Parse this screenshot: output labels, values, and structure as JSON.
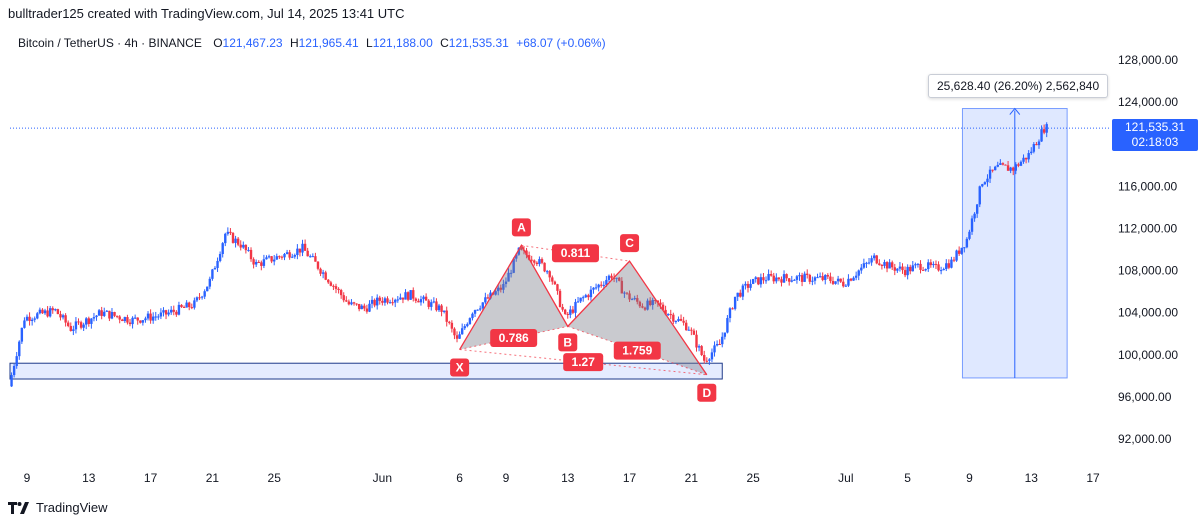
{
  "caption": "bulltrader125 created with TradingView.com, Jul 14, 2025 13:41 UTC",
  "legend": {
    "symbol": "Bitcoin / TetherUS · 4h · BINANCE",
    "o_label": "O",
    "o_value": "121,467.23",
    "h_label": "H",
    "h_value": "121,965.41",
    "l_label": "L",
    "l_value": "121,188.00",
    "c_label": "C",
    "c_value": "121,535.31",
    "change": "+68.07 (+0.06%)"
  },
  "price_tag": {
    "price": "121,535.31",
    "countdown": "02:18:03"
  },
  "measure_label": "25,628.40 (26.20%) 2,562,840",
  "brand": "TradingView",
  "colors": {
    "up": "#2962ff",
    "down": "#f23645",
    "pattern_fill": "#b2b5be",
    "pattern_line": "#f23645",
    "zone": "#2962ff"
  },
  "chart_data": {
    "type": "candlestick",
    "title": "Bitcoin / TetherUS · 4h · BINANCE",
    "ylim": [
      91000,
      130000
    ],
    "y_ticks": [
      "92,000.00",
      "96,000.00",
      "100,000.00",
      "104,000.00",
      "108,000.00",
      "112,000.00",
      "116,000.00",
      "120,000.00",
      "124,000.00",
      "128,000.00"
    ],
    "y_tick_values": [
      92000,
      96000,
      100000,
      104000,
      108000,
      112000,
      116000,
      120000,
      124000,
      128000
    ],
    "x_ticks": [
      "9",
      "13",
      "17",
      "21",
      "25",
      "Jun",
      "6",
      "9",
      "13",
      "17",
      "21",
      "25",
      "Jul",
      "5",
      "9",
      "13",
      "17"
    ],
    "x_tick_dates": [
      "2025-05-09",
      "2025-05-13",
      "2025-05-17",
      "2025-05-21",
      "2025-05-25",
      "2025-06-01",
      "2025-06-06",
      "2025-06-09",
      "2025-06-13",
      "2025-06-17",
      "2025-06-21",
      "2025-06-25",
      "2025-07-01",
      "2025-07-05",
      "2025-07-09",
      "2025-07-13",
      "2025-07-17"
    ],
    "price_path": [
      [
        "2025-05-08",
        97000
      ],
      [
        "2025-05-09",
        103500
      ],
      [
        "2025-05-11",
        104200
      ],
      [
        "2025-05-12",
        102500
      ],
      [
        "2025-05-14",
        104000
      ],
      [
        "2025-05-16",
        103300
      ],
      [
        "2025-05-18",
        103800
      ],
      [
        "2025-05-20",
        104800
      ],
      [
        "2025-05-21",
        107000
      ],
      [
        "2025-05-22",
        111500
      ],
      [
        "2025-05-23",
        110500
      ],
      [
        "2025-05-24",
        108600
      ],
      [
        "2025-05-26",
        109600
      ],
      [
        "2025-05-27",
        110100
      ],
      [
        "2025-05-28",
        108400
      ],
      [
        "2025-05-30",
        104800
      ],
      [
        "2025-05-31",
        104400
      ],
      [
        "2025-06-01",
        105200
      ],
      [
        "2025-06-03",
        105700
      ],
      [
        "2025-06-04",
        105000
      ],
      [
        "2025-06-05",
        104300
      ],
      [
        "2025-06-06",
        101300
      ],
      [
        "2025-06-07",
        104200
      ],
      [
        "2025-06-09",
        106500
      ],
      [
        "2025-06-10",
        109800
      ],
      [
        "2025-06-11",
        109200
      ],
      [
        "2025-06-12",
        107800
      ],
      [
        "2025-06-13",
        103500
      ],
      [
        "2025-06-14",
        105200
      ],
      [
        "2025-06-16",
        107600
      ],
      [
        "2025-06-17",
        105600
      ],
      [
        "2025-06-18",
        104700
      ],
      [
        "2025-06-19",
        104800
      ],
      [
        "2025-06-20",
        103600
      ],
      [
        "2025-06-21",
        102600
      ],
      [
        "2025-06-22",
        99500
      ],
      [
        "2025-06-23",
        101000
      ],
      [
        "2025-06-24",
        105500
      ],
      [
        "2025-06-25",
        106800
      ],
      [
        "2025-06-26",
        107300
      ],
      [
        "2025-06-28",
        107300
      ],
      [
        "2025-06-30",
        107200
      ],
      [
        "2025-07-01",
        106800
      ],
      [
        "2025-07-03",
        109200
      ],
      [
        "2025-07-04",
        108400
      ],
      [
        "2025-07-05",
        108000
      ],
      [
        "2025-07-06",
        108500
      ],
      [
        "2025-07-07",
        108200
      ],
      [
        "2025-07-08",
        108800
      ],
      [
        "2025-07-09",
        111000
      ],
      [
        "2025-07-10",
        116500
      ],
      [
        "2025-07-11",
        117800
      ],
      [
        "2025-07-12",
        117700
      ],
      [
        "2025-07-13",
        119000
      ],
      [
        "2025-07-14",
        121535
      ]
    ],
    "last_price": 121535.31,
    "harmonic_pattern": {
      "points": [
        {
          "label": "X",
          "date": "2025-06-06",
          "price": 100500
        },
        {
          "label": "A",
          "date": "2025-06-10",
          "price": 110400
        },
        {
          "label": "B",
          "date": "2025-06-13",
          "price": 102700
        },
        {
          "label": "C",
          "date": "2025-06-17",
          "price": 108900
        },
        {
          "label": "D",
          "date": "2025-06-22",
          "price": 98100
        }
      ],
      "ratios": [
        {
          "label": "0.786",
          "between": "X-B"
        },
        {
          "label": "0.811",
          "between": "A-C"
        },
        {
          "label": "1.27",
          "between": "X-D"
        },
        {
          "label": "1.759",
          "between": "B-D"
        }
      ]
    },
    "support_zone": {
      "date_from": "2025-05-08",
      "date_to": "2025-06-23",
      "price_from": 97700,
      "price_to": 99200
    },
    "measure": {
      "date_from": "2025-07-09",
      "date_to": "2025-07-15",
      "price_from": 97800,
      "price_to": 123400,
      "label": "25,628.40 (26.20%) 2,562,840"
    }
  }
}
